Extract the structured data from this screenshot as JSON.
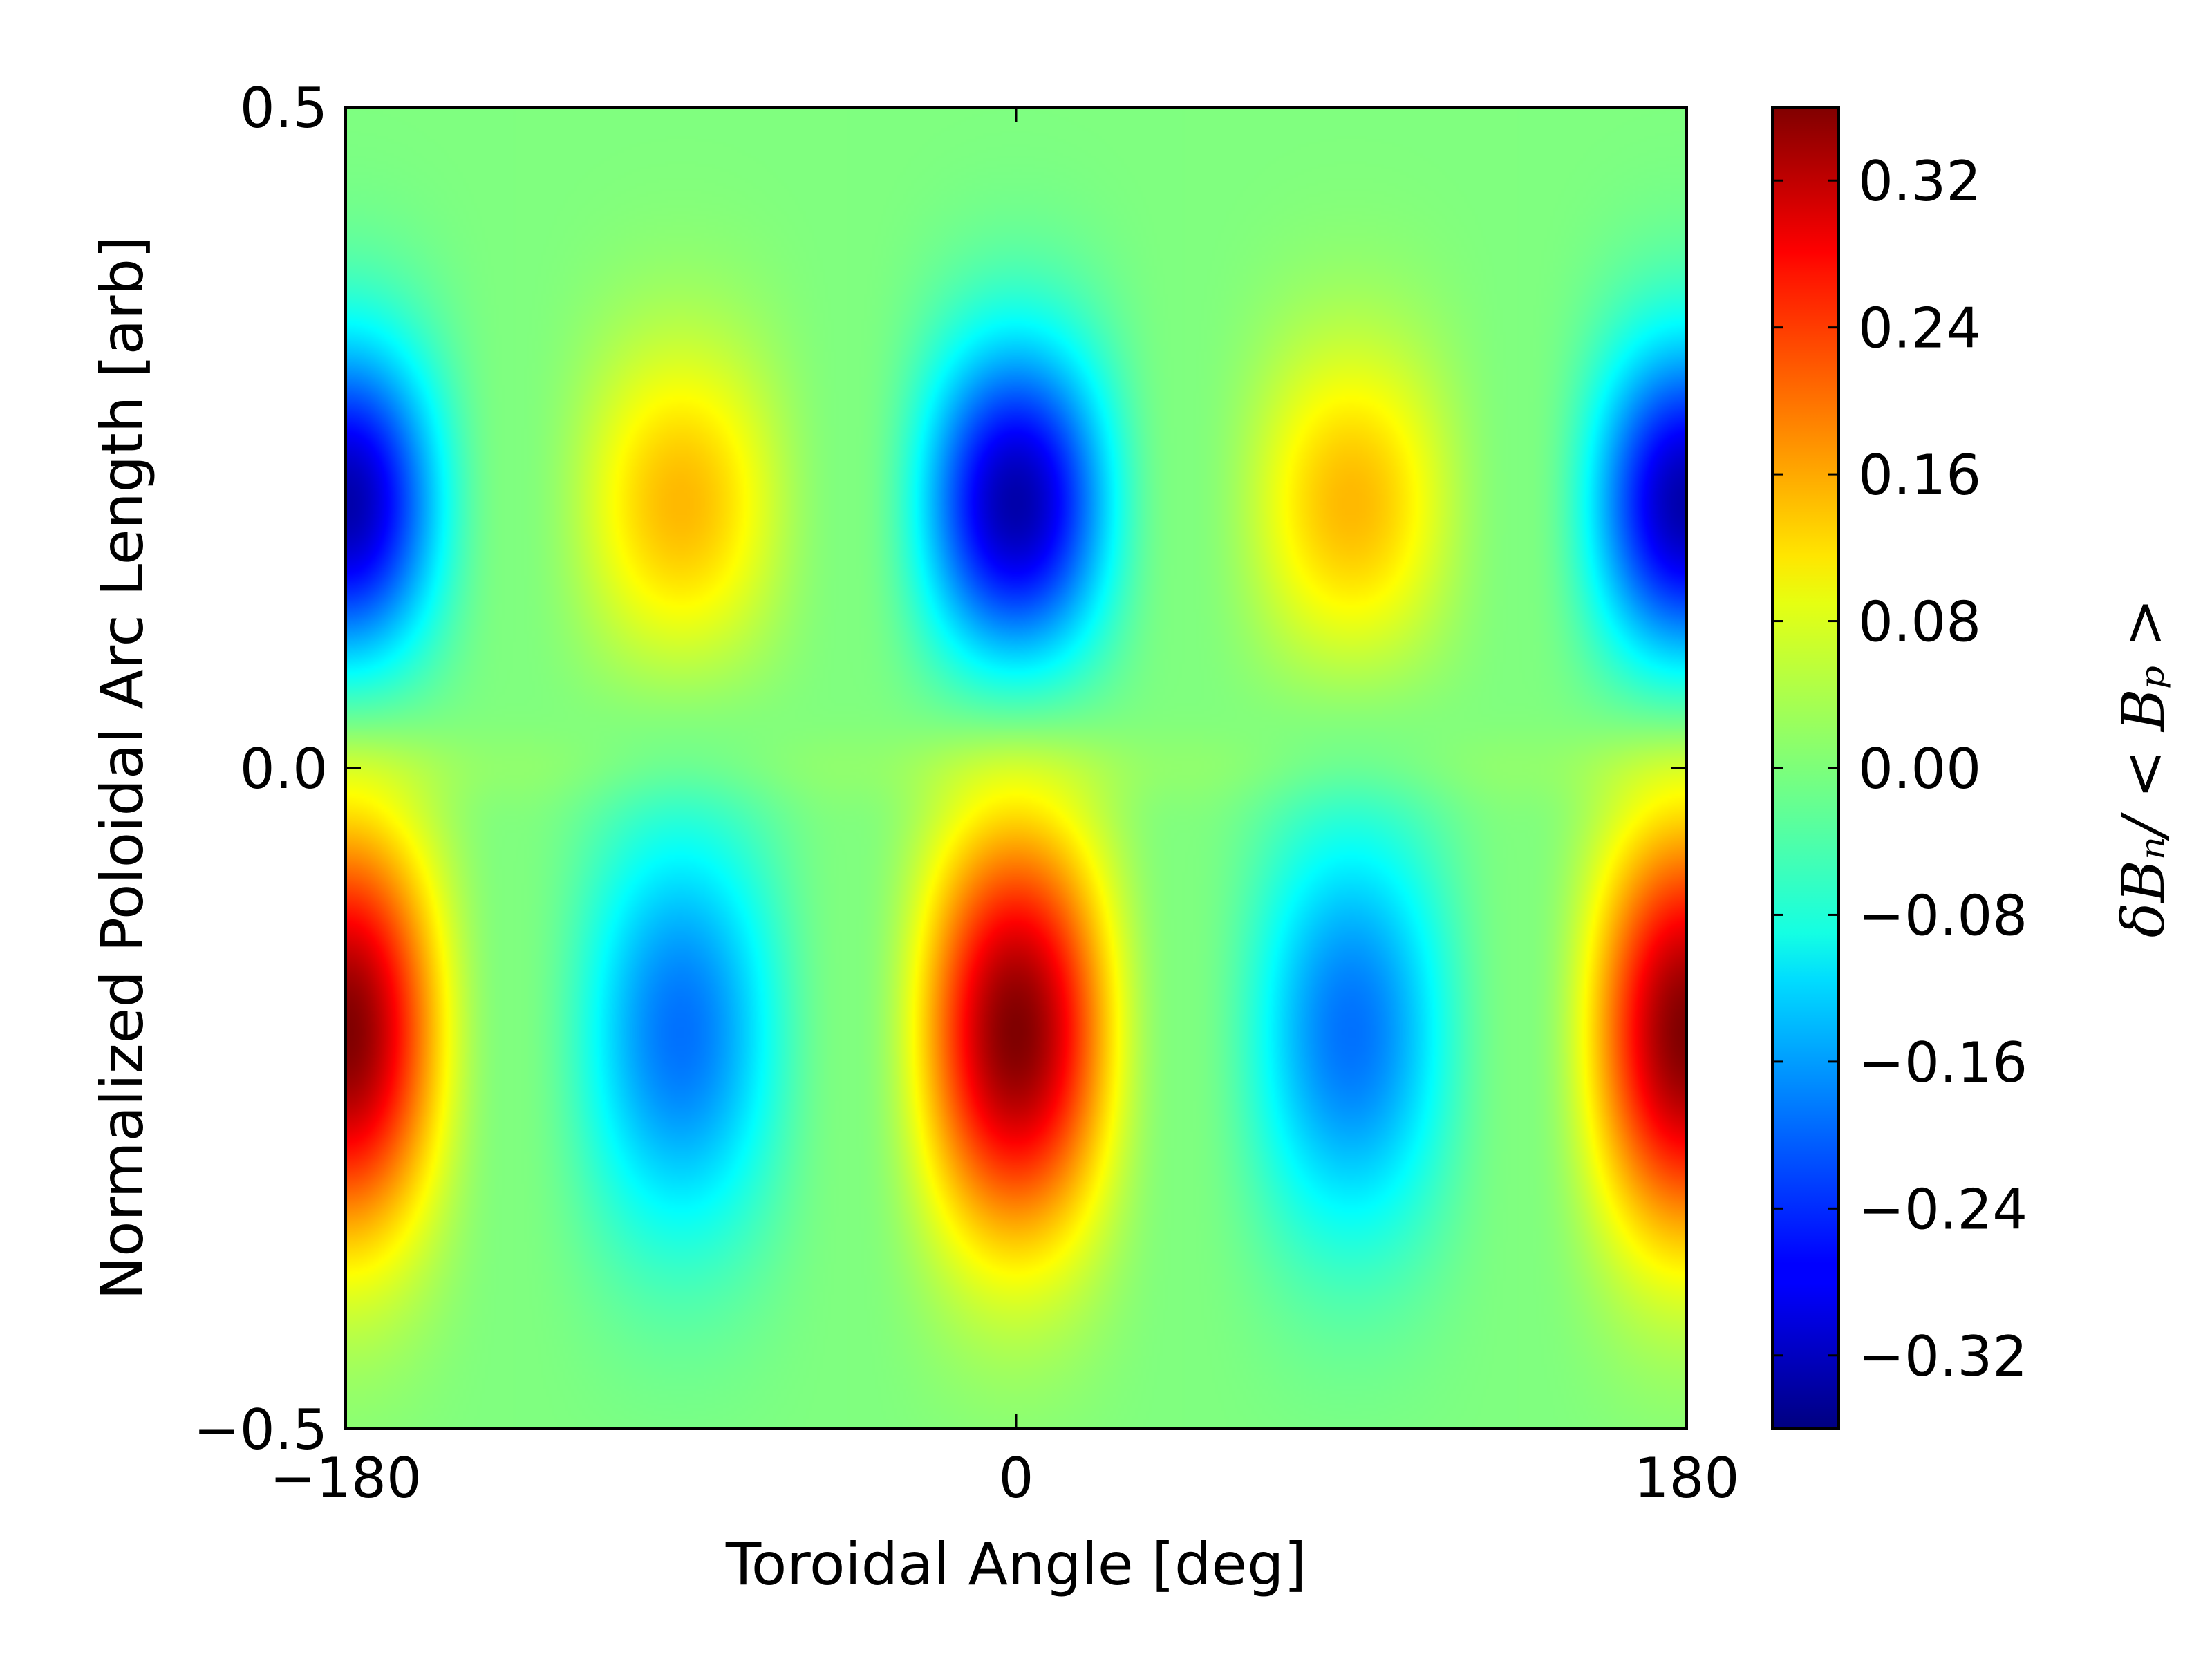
{
  "chart_data": {
    "type": "heatmap",
    "title": "",
    "xlabel": "Toroidal Angle [deg]",
    "ylabel": "Normalized Poloidal Arc Length [arb]",
    "xlim": [
      -180,
      180
    ],
    "ylim": [
      -0.5,
      0.5
    ],
    "x_ticks": [
      -180,
      0,
      180
    ],
    "x_tick_labels": [
      "−180",
      "0",
      "180"
    ],
    "y_ticks": [
      -0.5,
      0.0,
      0.5
    ],
    "y_tick_labels": [
      "−0.5",
      "0.0",
      "0.5"
    ],
    "colorbar": {
      "label": "δBₙ/ < Bₚ >",
      "colormap": "jet",
      "vmin": -0.36,
      "vmax": 0.36,
      "ticks": [
        -0.32,
        -0.24,
        -0.16,
        -0.08,
        0.0,
        0.08,
        0.16,
        0.24,
        0.32
      ],
      "tick_labels": [
        "−0.32",
        "−0.24",
        "−0.16",
        "−0.08",
        "0.00",
        "0.08",
        "0.16",
        "0.24",
        "0.32"
      ]
    },
    "toroidal_mode_number": 2,
    "features": [
      {
        "x": 0,
        "y": 0.21,
        "value": -0.27
      },
      {
        "x": -180,
        "y": 0.21,
        "value": -0.27
      },
      {
        "x": 180,
        "y": 0.21,
        "value": -0.27
      },
      {
        "x": -90,
        "y": 0.18,
        "value": 0.16
      },
      {
        "x": 90,
        "y": 0.18,
        "value": 0.16
      },
      {
        "x": 0,
        "y": -0.2,
        "value": 0.33
      },
      {
        "x": -180,
        "y": -0.2,
        "value": 0.33
      },
      {
        "x": 180,
        "y": -0.2,
        "value": 0.33
      },
      {
        "x": -90,
        "y": -0.2,
        "value": -0.17
      },
      {
        "x": 90,
        "y": -0.2,
        "value": -0.17
      }
    ]
  }
}
